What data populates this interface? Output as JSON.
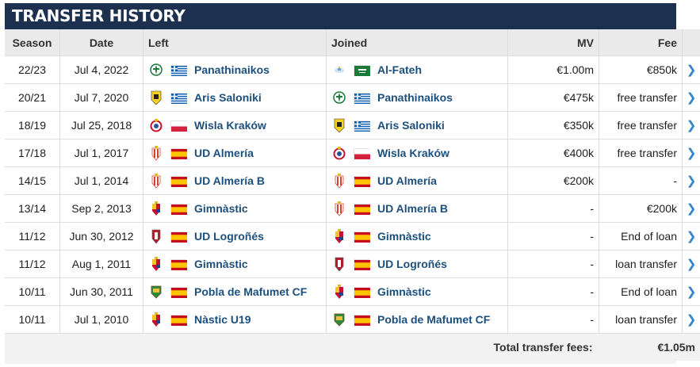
{
  "title": "TRANSFER HISTORY",
  "columns": {
    "season": "Season",
    "date": "Date",
    "left": "Left",
    "joined": "Joined",
    "mv": "MV",
    "fee": "Fee"
  },
  "rows": [
    {
      "season": "22/23",
      "date": "Jul 4, 2022",
      "left": {
        "club": "Panathinaikos",
        "crest": "panathinaikos",
        "flag": "greece"
      },
      "joined": {
        "club": "Al-Fateh",
        "crest": "al-fateh",
        "flag": "saudi-arabia"
      },
      "mv": "€1.00m",
      "fee": "€850k"
    },
    {
      "season": "20/21",
      "date": "Jul 7, 2020",
      "left": {
        "club": "Aris Saloniki",
        "crest": "aris",
        "flag": "greece"
      },
      "joined": {
        "club": "Panathinaikos",
        "crest": "panathinaikos",
        "flag": "greece"
      },
      "mv": "€475k",
      "fee": "free transfer"
    },
    {
      "season": "18/19",
      "date": "Jul 25, 2018",
      "left": {
        "club": "Wisla Kraków",
        "crest": "wisla",
        "flag": "poland"
      },
      "joined": {
        "club": "Aris Saloniki",
        "crest": "aris",
        "flag": "greece"
      },
      "mv": "€350k",
      "fee": "free transfer"
    },
    {
      "season": "17/18",
      "date": "Jul 1, 2017",
      "left": {
        "club": "UD Almería",
        "crest": "almeria",
        "flag": "spain"
      },
      "joined": {
        "club": "Wisla Kraków",
        "crest": "wisla",
        "flag": "poland"
      },
      "mv": "€400k",
      "fee": "free transfer"
    },
    {
      "season": "14/15",
      "date": "Jul 1, 2014",
      "left": {
        "club": "UD Almería B",
        "crest": "almeria",
        "flag": "spain"
      },
      "joined": {
        "club": "UD Almería",
        "crest": "almeria",
        "flag": "spain"
      },
      "mv": "€200k",
      "fee": "-"
    },
    {
      "season": "13/14",
      "date": "Sep 2, 2013",
      "left": {
        "club": "Gimnàstic",
        "crest": "gimnastic",
        "flag": "spain"
      },
      "joined": {
        "club": "UD Almería B",
        "crest": "almeria",
        "flag": "spain"
      },
      "mv": "-",
      "fee": "€200k"
    },
    {
      "season": "11/12",
      "date": "Jun 30, 2012",
      "left": {
        "club": "UD Logroñés",
        "crest": "logrones",
        "flag": "spain"
      },
      "joined": {
        "club": "Gimnàstic",
        "crest": "gimnastic",
        "flag": "spain"
      },
      "mv": "-",
      "fee": "End of loan"
    },
    {
      "season": "11/12",
      "date": "Aug 1, 2011",
      "left": {
        "club": "Gimnàstic",
        "crest": "gimnastic",
        "flag": "spain"
      },
      "joined": {
        "club": "UD Logroñés",
        "crest": "logrones",
        "flag": "spain"
      },
      "mv": "-",
      "fee": "loan transfer"
    },
    {
      "season": "10/11",
      "date": "Jun 30, 2011",
      "left": {
        "club": "Pobla de Mafumet CF",
        "crest": "pobla",
        "flag": "spain"
      },
      "joined": {
        "club": "Gimnàstic",
        "crest": "gimnastic",
        "flag": "spain"
      },
      "mv": "-",
      "fee": "End of loan"
    },
    {
      "season": "10/11",
      "date": "Jul 1, 2010",
      "left": {
        "club": "Nàstic U19",
        "crest": "gimnastic",
        "flag": "spain"
      },
      "joined": {
        "club": "Pobla de Mafumet CF",
        "crest": "pobla",
        "flag": "spain"
      },
      "mv": "-",
      "fee": "loan transfer"
    }
  ],
  "total": {
    "label": "Total transfer fees:",
    "value": "€1.05m"
  },
  "row_arrow_icon": "chevron-right-icon",
  "colors": {
    "header_bg": "#1d3050",
    "club_link": "#1c4f7c",
    "chevron": "#3384cb"
  }
}
